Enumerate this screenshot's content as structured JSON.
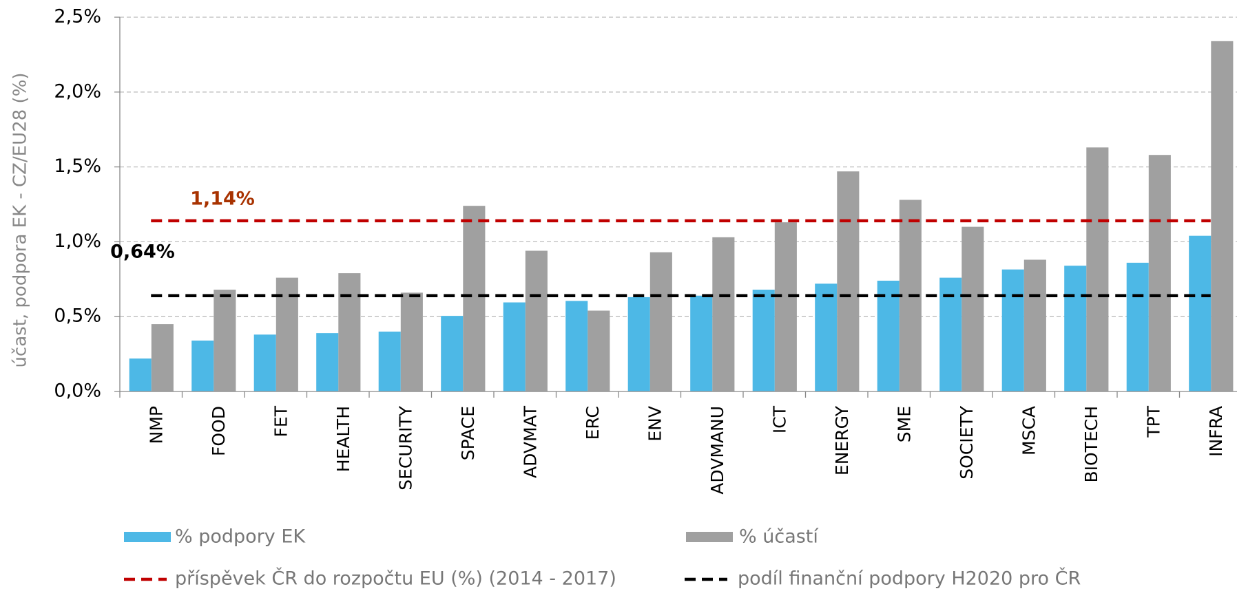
{
  "chart_data": {
    "type": "bar",
    "y_label": "účast, podpora EK  -  CZ/EU28 (%)",
    "categories": [
      "NMP",
      "FOOD",
      "FET",
      "HEALTH",
      "SECURITY",
      "SPACE",
      "ADVMAT",
      "ERC",
      "ENV",
      "ADVMANU",
      "ICT",
      "ENERGY",
      "SME",
      "SOCIETY",
      "MSCA",
      "BIOTECH",
      "TPT",
      "INFRA"
    ],
    "series": [
      {
        "name": "% podpory EK",
        "color": "#4db8e6",
        "values": [
          0.22,
          0.34,
          0.38,
          0.39,
          0.4,
          0.505,
          0.595,
          0.605,
          0.63,
          0.64,
          0.68,
          0.72,
          0.74,
          0.76,
          0.815,
          0.84,
          0.86,
          1.04
        ]
      },
      {
        "name": "% účastí",
        "color": "#a0a0a0",
        "values": [
          0.45,
          0.68,
          0.76,
          0.79,
          0.66,
          1.24,
          0.94,
          0.54,
          0.93,
          1.03,
          1.13,
          1.47,
          1.28,
          1.1,
          0.88,
          1.63,
          1.58,
          2.34
        ]
      }
    ],
    "reference_lines": [
      {
        "name": "příspěvek ČR do rozpočtu EU (%) (2014 - 2017)",
        "value": 1.14,
        "label": "1,14%",
        "color": "#c00000",
        "label_color": "#a83200"
      },
      {
        "name": "podíl finanční podpory H2020 pro ČR",
        "value": 0.64,
        "label": "0,64%",
        "color": "#000000",
        "label_color": "#000000"
      }
    ],
    "ylim": [
      0,
      2.5
    ],
    "yticks": [
      {
        "value": 0,
        "label": "0,0%"
      },
      {
        "value": 0.5,
        "label": "0,5%"
      },
      {
        "value": 1.0,
        "label": "1,0%"
      },
      {
        "value": 1.5,
        "label": "1,5%"
      },
      {
        "value": 2.0,
        "label": "2,0%"
      },
      {
        "value": 2.5,
        "label": "2,5%"
      }
    ],
    "grid": true
  }
}
